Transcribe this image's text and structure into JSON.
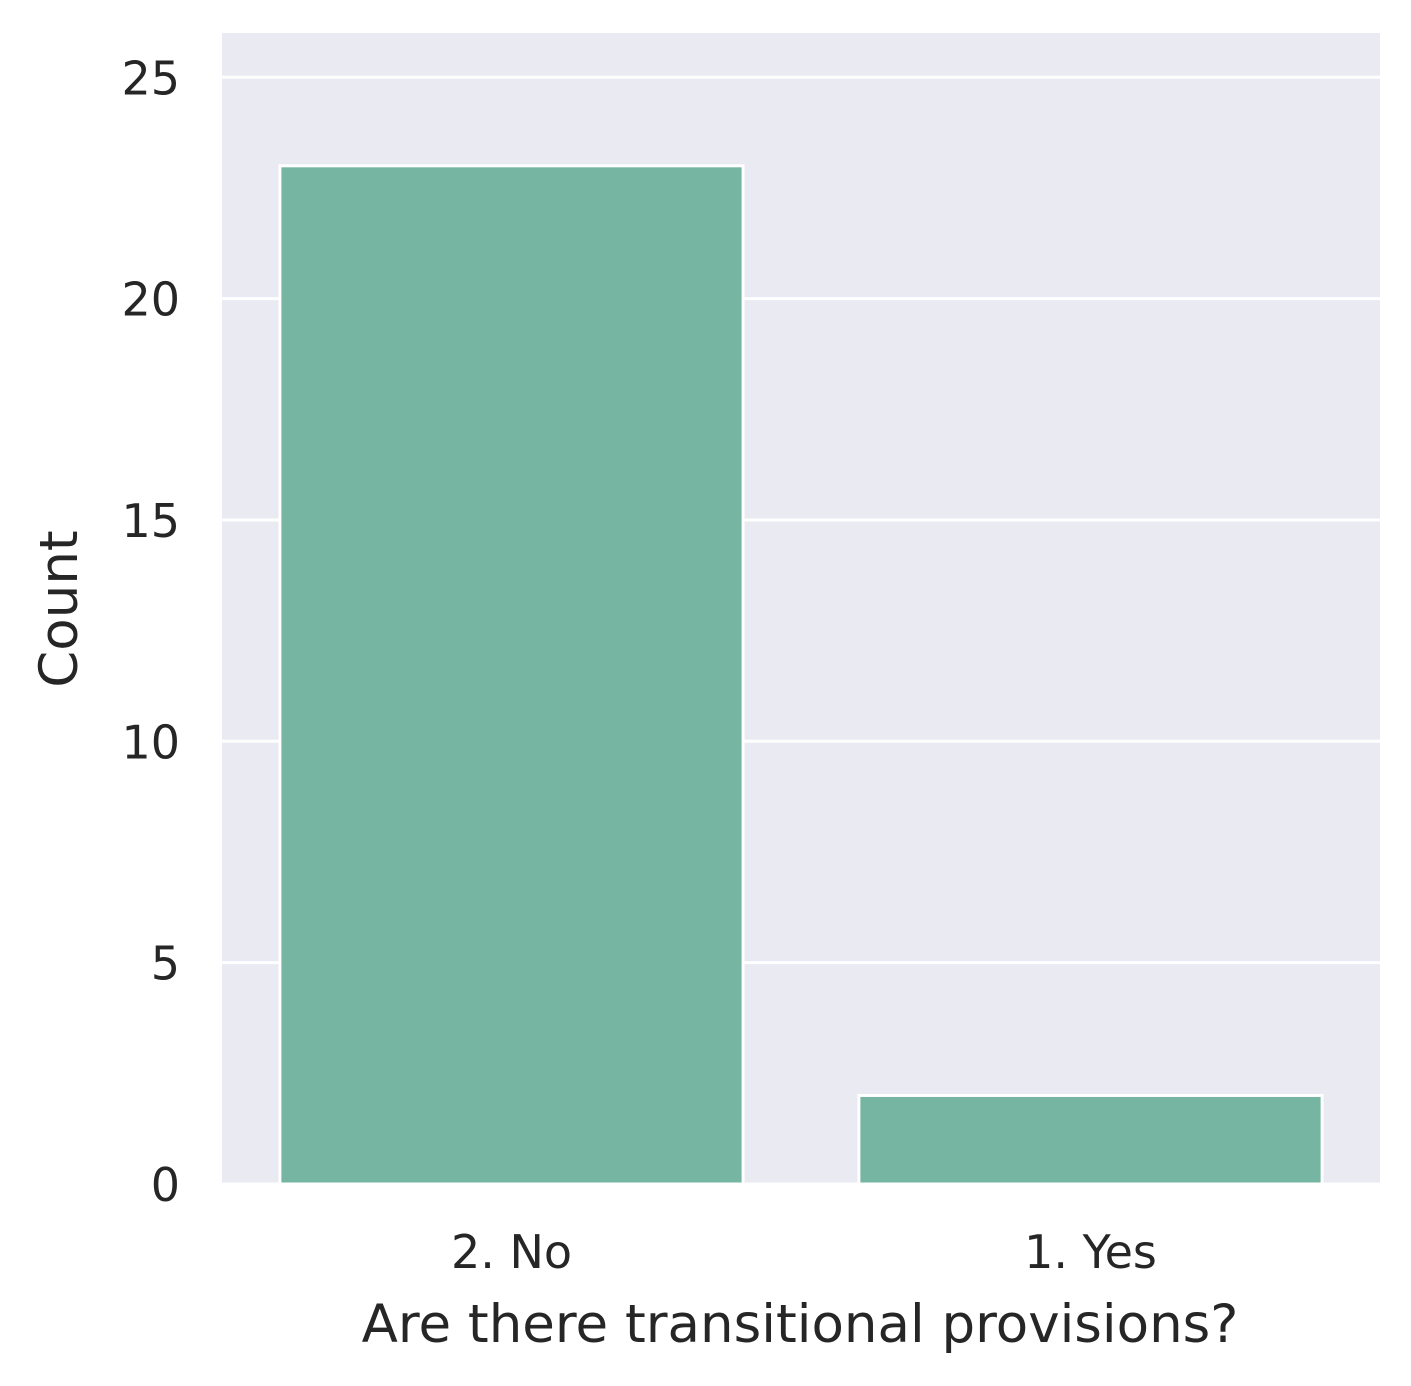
{
  "chart_data": {
    "type": "bar",
    "categories": [
      "2. No",
      "1. Yes"
    ],
    "values": [
      23,
      2
    ],
    "title": "",
    "xlabel": "Are there transitional provisions?",
    "ylabel": "Count",
    "ylim": [
      0,
      26
    ],
    "yticks": [
      0,
      5,
      10,
      15,
      20,
      25
    ],
    "grid": true,
    "colors": {
      "bar": "#76b5a1",
      "background": "#eaeaf2",
      "grid": "#ffffff",
      "text": "#262626"
    }
  }
}
